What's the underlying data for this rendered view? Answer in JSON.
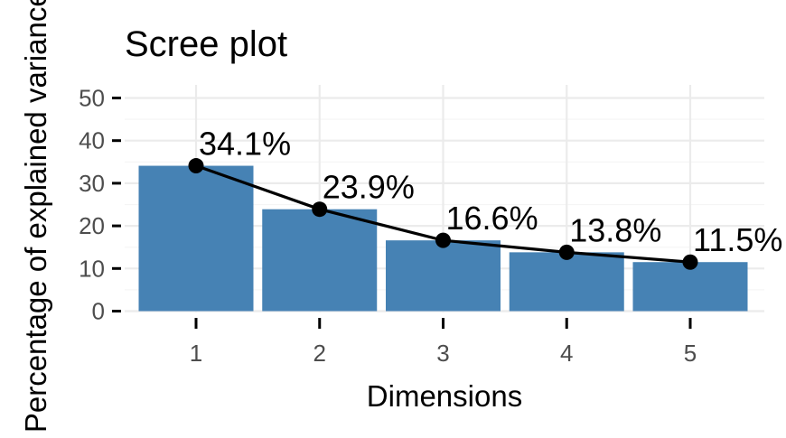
{
  "chart_data": {
    "type": "bar",
    "title": "Scree plot",
    "xlabel": "Dimensions",
    "ylabel": "Percentage of explained variances",
    "categories": [
      "1",
      "2",
      "3",
      "4",
      "5"
    ],
    "values": [
      34.1,
      23.9,
      16.6,
      13.8,
      11.5
    ],
    "data_labels": [
      "34.1%",
      "23.9%",
      "16.6%",
      "13.8%",
      "11.5%"
    ],
    "ylim": [
      0,
      50
    ],
    "yticks": [
      0,
      10,
      20,
      30,
      40,
      50
    ],
    "grid": true,
    "line_overlay": true,
    "colors": {
      "bar": "#4682b4",
      "line": "#000000",
      "grid_major": "#ebebeb",
      "grid_minor": "#f5f5f5",
      "tick_text": "#4d4d4d"
    }
  }
}
